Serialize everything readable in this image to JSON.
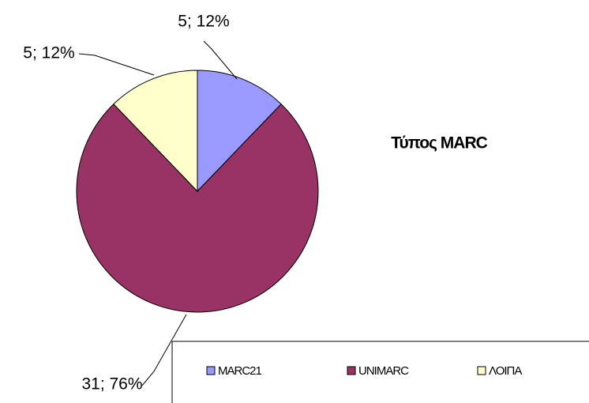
{
  "chart_data": {
    "type": "pie",
    "title": "Τύπος MARC",
    "categories": [
      "MARC21",
      "UNIMARC",
      "ΛΟΙΠΑ"
    ],
    "values": [
      5,
      31,
      5
    ],
    "value_labels": [
      "5; 12%",
      "31; 76%",
      "5; 12%"
    ],
    "colors": [
      "#9999ff",
      "#993366",
      "#ffffcc"
    ],
    "legend": "bottom"
  }
}
